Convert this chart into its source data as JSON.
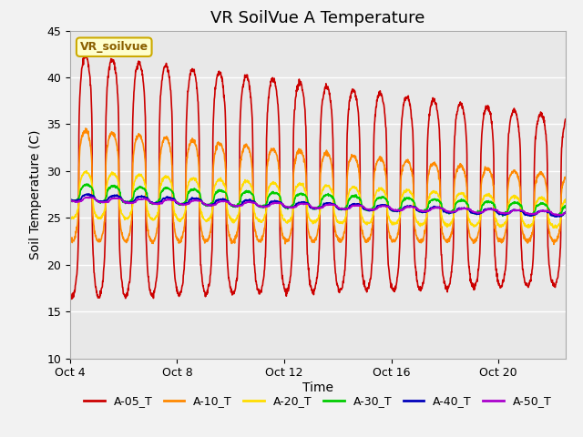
{
  "title": "VR SoilVue A Temperature",
  "ylabel": "Soil Temperature (C)",
  "xlabel": "Time",
  "ylim": [
    10,
    45
  ],
  "xlim": [
    0,
    18.5
  ],
  "annotation": "VR_soilvue",
  "series": {
    "A-05_T": {
      "color": "#cc0000",
      "linewidth": 1.2
    },
    "A-10_T": {
      "color": "#ff8800",
      "linewidth": 1.2
    },
    "A-20_T": {
      "color": "#ffdd00",
      "linewidth": 1.2
    },
    "A-30_T": {
      "color": "#00cc00",
      "linewidth": 1.2
    },
    "A-40_T": {
      "color": "#0000bb",
      "linewidth": 1.2
    },
    "A-50_T": {
      "color": "#aa00cc",
      "linewidth": 1.2
    }
  },
  "xtick_labels": [
    "Oct 4",
    "Oct 8",
    "Oct 12",
    "Oct 16",
    "Oct 20"
  ],
  "xtick_positions": [
    0,
    4,
    8,
    12,
    16
  ],
  "title_fontsize": 13,
  "label_fontsize": 10,
  "tick_fontsize": 9,
  "legend_fontsize": 9,
  "grid_color": "#ffffff",
  "plot_bg": "#e8e8e8",
  "fig_bg": "#f2f2f2"
}
